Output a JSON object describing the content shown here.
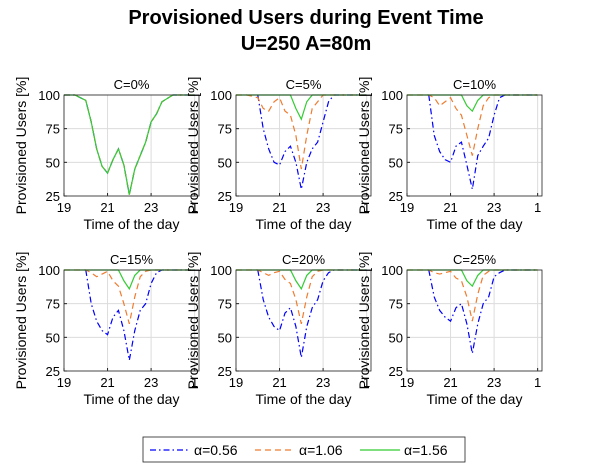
{
  "title": "Provisioned Users during Event Time",
  "subtitle": "U=250 A=80m",
  "chart_data": [
    {
      "type": "line",
      "title": "C=0%",
      "x_label": "Time of the day",
      "y_label": "Provisioned Users [%]",
      "x": [
        19,
        19.5,
        20,
        20.25,
        20.5,
        20.75,
        21,
        21.25,
        21.5,
        21.75,
        22,
        22.25,
        22.5,
        22.75,
        23,
        23.25,
        23.5,
        24,
        25
      ],
      "xlim": [
        19,
        25.2
      ],
      "xticks": [
        19,
        21,
        23,
        {
          "value": 25,
          "label": "1"
        }
      ],
      "ylim": [
        25,
        100
      ],
      "yticks": [
        25,
        50,
        75,
        100
      ],
      "grid": true,
      "series": [
        {
          "name": "α=0.56",
          "color": "#0000ff",
          "linestyle": "dashdot",
          "values": [
            100,
            100,
            96,
            80,
            60,
            47,
            42,
            52,
            60,
            48,
            26,
            45,
            55,
            65,
            80,
            86,
            95,
            100,
            100
          ]
        },
        {
          "name": "α=1.06",
          "color": "#f07c30",
          "linestyle": "dashed",
          "values": [
            100,
            100,
            96,
            80,
            60,
            47,
            42,
            52,
            60,
            48,
            26,
            45,
            55,
            65,
            80,
            86,
            95,
            100,
            100
          ]
        },
        {
          "name": "α=1.56",
          "color": "#33cc33",
          "linestyle": "solid",
          "values": [
            100,
            100,
            96,
            80,
            60,
            47,
            42,
            52,
            60,
            48,
            26,
            45,
            55,
            65,
            80,
            86,
            95,
            100,
            100
          ]
        }
      ]
    },
    {
      "type": "line",
      "title": "C=5%",
      "x_label": "Time of the day",
      "y_label": "Provisioned Users [%]",
      "x": [
        19,
        19.5,
        20,
        20.25,
        20.5,
        20.75,
        21,
        21.25,
        21.5,
        21.75,
        22,
        22.25,
        22.5,
        22.75,
        23,
        23.25,
        23.5,
        24,
        25
      ],
      "xlim": [
        19,
        25.2
      ],
      "xticks": [
        19,
        21,
        23,
        {
          "value": 25,
          "label": "1"
        }
      ],
      "ylim": [
        25,
        100
      ],
      "yticks": [
        25,
        50,
        75,
        100
      ],
      "grid": true,
      "series": [
        {
          "name": "α=0.56",
          "color": "#0000ff",
          "linestyle": "dashdot",
          "values": [
            null,
            null,
            100,
            75,
            60,
            50,
            48,
            58,
            62,
            50,
            30,
            50,
            60,
            65,
            80,
            95,
            100,
            100,
            100
          ]
        },
        {
          "name": "α=1.06",
          "color": "#f07c30",
          "linestyle": "dashed",
          "values": [
            100,
            100,
            98,
            90,
            88,
            95,
            98,
            88,
            85,
            70,
            45,
            70,
            90,
            95,
            100,
            100,
            100,
            100,
            100
          ]
        },
        {
          "name": "α=1.56",
          "color": "#33cc33",
          "linestyle": "solid",
          "values": [
            100,
            100,
            100,
            100,
            100,
            100,
            100,
            100,
            100,
            90,
            82,
            95,
            100,
            100,
            100,
            100,
            100,
            100,
            100
          ]
        }
      ]
    },
    {
      "type": "line",
      "title": "C=10%",
      "x_label": "Time of the day",
      "y_label": "Provisioned Users [%]",
      "x": [
        19,
        19.5,
        20,
        20.25,
        20.5,
        20.75,
        21,
        21.25,
        21.5,
        21.75,
        22,
        22.25,
        22.5,
        22.75,
        23,
        23.25,
        23.5,
        24,
        25
      ],
      "xlim": [
        19,
        25.2
      ],
      "xticks": [
        19,
        21,
        23,
        {
          "value": 25,
          "label": "1"
        }
      ],
      "ylim": [
        25,
        100
      ],
      "yticks": [
        25,
        50,
        75,
        100
      ],
      "grid": true,
      "series": [
        {
          "name": "α=0.56",
          "color": "#0000ff",
          "linestyle": "dashdot",
          "values": [
            null,
            null,
            100,
            70,
            58,
            52,
            50,
            62,
            65,
            48,
            30,
            55,
            62,
            68,
            85,
            98,
            100,
            100,
            100
          ]
        },
        {
          "name": "α=1.06",
          "color": "#f07c30",
          "linestyle": "dashed",
          "values": [
            100,
            100,
            100,
            98,
            92,
            95,
            98,
            90,
            85,
            70,
            55,
            75,
            92,
            98,
            100,
            100,
            100,
            100,
            100
          ]
        },
        {
          "name": "α=1.56",
          "color": "#33cc33",
          "linestyle": "solid",
          "values": [
            100,
            100,
            100,
            100,
            100,
            100,
            100,
            100,
            100,
            92,
            88,
            96,
            100,
            100,
            100,
            100,
            100,
            100,
            100
          ]
        }
      ]
    },
    {
      "type": "line",
      "title": "C=15%",
      "x_label": "Time of the day",
      "y_label": "Provisioned Users [%]",
      "x": [
        19,
        19.5,
        20,
        20.25,
        20.5,
        20.75,
        21,
        21.25,
        21.5,
        21.75,
        22,
        22.25,
        22.5,
        22.75,
        23,
        23.25,
        23.5,
        24,
        25
      ],
      "xlim": [
        19,
        25.2
      ],
      "xticks": [
        19,
        21,
        23,
        {
          "value": 25,
          "label": "1"
        }
      ],
      "ylim": [
        25,
        100
      ],
      "yticks": [
        25,
        50,
        75,
        100
      ],
      "grid": true,
      "series": [
        {
          "name": "α=0.56",
          "color": "#0000ff",
          "linestyle": "dashdot",
          "values": [
            null,
            null,
            100,
            75,
            62,
            55,
            52,
            65,
            70,
            55,
            33,
            55,
            70,
            75,
            90,
            98,
            100,
            100,
            100
          ]
        },
        {
          "name": "α=1.06",
          "color": "#f07c30",
          "linestyle": "dashed",
          "values": [
            100,
            100,
            100,
            98,
            95,
            97,
            99,
            92,
            88,
            75,
            60,
            80,
            95,
            99,
            100,
            100,
            100,
            100,
            100
          ]
        },
        {
          "name": "α=1.56",
          "color": "#33cc33",
          "linestyle": "solid",
          "values": [
            100,
            100,
            100,
            100,
            100,
            100,
            100,
            100,
            100,
            92,
            86,
            96,
            100,
            100,
            100,
            100,
            100,
            100,
            100
          ]
        }
      ]
    },
    {
      "type": "line",
      "title": "C=20%",
      "x_label": "Time of the day",
      "y_label": "Provisioned Users [%]",
      "x": [
        19,
        19.5,
        20,
        20.25,
        20.5,
        20.75,
        21,
        21.25,
        21.5,
        21.75,
        22,
        22.25,
        22.5,
        22.75,
        23,
        23.25,
        23.5,
        24,
        25
      ],
      "xlim": [
        19,
        25.2
      ],
      "xticks": [
        19,
        21,
        23,
        {
          "value": 25,
          "label": "1"
        }
      ],
      "ylim": [
        25,
        100
      ],
      "yticks": [
        25,
        50,
        75,
        100
      ],
      "grid": true,
      "series": [
        {
          "name": "α=0.56",
          "color": "#0000ff",
          "linestyle": "dashdot",
          "values": [
            null,
            null,
            100,
            78,
            65,
            58,
            55,
            68,
            72,
            58,
            35,
            58,
            72,
            78,
            92,
            98,
            100,
            100,
            100
          ]
        },
        {
          "name": "α=1.06",
          "color": "#f07c30",
          "linestyle": "dashed",
          "values": [
            100,
            100,
            100,
            98,
            96,
            98,
            99,
            93,
            90,
            78,
            60,
            80,
            95,
            99,
            100,
            100,
            100,
            100,
            100
          ]
        },
        {
          "name": "α=1.56",
          "color": "#33cc33",
          "linestyle": "solid",
          "values": [
            100,
            100,
            100,
            100,
            100,
            100,
            100,
            100,
            100,
            92,
            86,
            96,
            100,
            100,
            100,
            100,
            100,
            100,
            100
          ]
        }
      ]
    },
    {
      "type": "line",
      "title": "C=25%",
      "x_label": "Time of the day",
      "y_label": "Provisioned Users [%]",
      "x": [
        19,
        19.5,
        20,
        20.25,
        20.5,
        20.75,
        21,
        21.25,
        21.5,
        21.75,
        22,
        22.25,
        22.5,
        22.75,
        23,
        23.25,
        23.5,
        24,
        25
      ],
      "xlim": [
        19,
        25.2
      ],
      "xticks": [
        19,
        21,
        23,
        {
          "value": 25,
          "label": "1"
        }
      ],
      "ylim": [
        25,
        100
      ],
      "yticks": [
        25,
        50,
        75,
        100
      ],
      "grid": true,
      "series": [
        {
          "name": "α=0.56",
          "color": "#0000ff",
          "linestyle": "dashdot",
          "values": [
            null,
            null,
            100,
            80,
            70,
            65,
            62,
            72,
            75,
            60,
            38,
            60,
            75,
            80,
            95,
            98,
            100,
            100,
            100
          ]
        },
        {
          "name": "α=1.06",
          "color": "#f07c30",
          "linestyle": "dashed",
          "values": [
            100,
            100,
            100,
            98,
            97,
            98,
            99,
            94,
            92,
            80,
            62,
            82,
            96,
            99,
            100,
            100,
            100,
            100,
            100
          ]
        },
        {
          "name": "α=1.56",
          "color": "#33cc33",
          "linestyle": "solid",
          "values": [
            100,
            100,
            100,
            100,
            100,
            100,
            100,
            100,
            100,
            92,
            88,
            96,
            100,
            100,
            100,
            100,
            100,
            100,
            100
          ]
        }
      ]
    }
  ]
}
